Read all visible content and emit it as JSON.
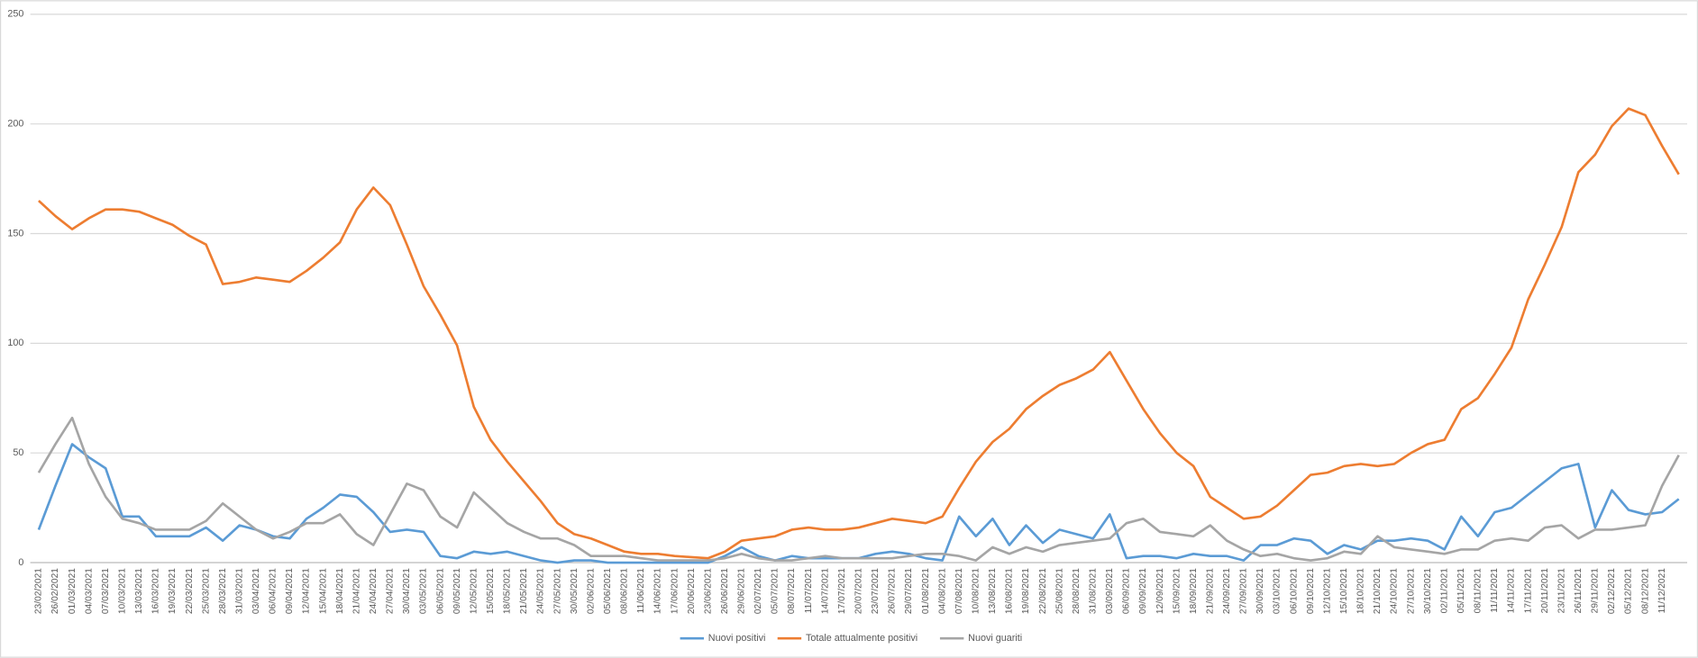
{
  "chart_data": {
    "type": "line",
    "categories": [
      "23/02/2021",
      "26/02/2021",
      "01/03/2021",
      "04/03/2021",
      "07/03/2021",
      "10/03/2021",
      "13/03/2021",
      "16/03/2021",
      "19/03/2021",
      "22/03/2021",
      "25/03/2021",
      "28/03/2021",
      "31/03/2021",
      "03/04/2021",
      "06/04/2021",
      "09/04/2021",
      "12/04/2021",
      "15/04/2021",
      "18/04/2021",
      "21/04/2021",
      "24/04/2021",
      "27/04/2021",
      "30/04/2021",
      "03/05/2021",
      "06/05/2021",
      "09/05/2021",
      "12/05/2021",
      "15/05/2021",
      "18/05/2021",
      "21/05/2021",
      "24/05/2021",
      "27/05/2021",
      "30/05/2021",
      "02/06/2021",
      "05/06/2021",
      "08/06/2021",
      "11/06/2021",
      "14/06/2021",
      "17/06/2021",
      "20/06/2021",
      "23/06/2021",
      "26/06/2021",
      "29/06/2021",
      "02/07/2021",
      "05/07/2021",
      "08/07/2021",
      "11/07/2021",
      "14/07/2021",
      "17/07/2021",
      "20/07/2021",
      "23/07/2021",
      "26/07/2021",
      "29/07/2021",
      "01/08/2021",
      "04/08/2021",
      "07/08/2021",
      "10/08/2021",
      "13/08/2021",
      "16/08/2021",
      "19/08/2021",
      "22/08/2021",
      "25/08/2021",
      "28/08/2021",
      "31/08/2021",
      "03/09/2021",
      "06/09/2021",
      "09/09/2021",
      "12/09/2021",
      "15/09/2021",
      "18/09/2021",
      "21/09/2021",
      "24/09/2021",
      "27/09/2021",
      "30/09/2021",
      "03/10/2021",
      "06/10/2021",
      "09/10/2021",
      "12/10/2021",
      "15/10/2021",
      "18/10/2021",
      "21/10/2021",
      "24/10/2021",
      "27/10/2021",
      "30/10/2021",
      "02/11/2021",
      "05/11/2021",
      "08/11/2021",
      "11/11/2021",
      "14/11/2021",
      "17/11/2021",
      "20/11/2021",
      "23/11/2021",
      "26/11/2021",
      "29/11/2021",
      "02/12/2021",
      "05/12/2021",
      "08/12/2021",
      "11/12/2021",
      null
    ],
    "series": [
      {
        "name": "Nuovi positivi",
        "color": "#5b9bd5",
        "values": [
          15,
          35,
          54,
          48,
          43,
          21,
          21,
          12,
          12,
          12,
          16,
          10,
          17,
          15,
          12,
          11,
          20,
          25,
          31,
          30,
          23,
          14,
          15,
          14,
          3,
          2,
          5,
          4,
          5,
          3,
          1,
          0,
          1,
          1,
          0,
          0,
          0,
          0,
          0,
          0,
          0,
          3,
          7,
          3,
          1,
          3,
          2,
          2,
          2,
          2,
          4,
          5,
          4,
          2,
          1,
          21,
          12,
          20,
          8,
          17,
          9,
          15,
          13,
          11,
          22,
          2,
          3,
          3,
          2,
          4,
          3,
          3,
          1,
          8,
          8,
          11,
          10,
          4,
          8,
          6,
          10,
          10,
          11,
          10,
          6,
          21,
          12,
          23,
          25,
          31,
          37,
          43,
          45,
          16,
          33,
          24,
          22,
          23,
          29
        ]
      },
      {
        "name": "Totale attualmente positivi",
        "color": "#ed7d31",
        "values": [
          165,
          158,
          152,
          157,
          161,
          161,
          160,
          157,
          154,
          149,
          145,
          127,
          128,
          130,
          129,
          128,
          133,
          139,
          146,
          161,
          171,
          163,
          145,
          126,
          113,
          99,
          71,
          56,
          46,
          37,
          28,
          18,
          13,
          11,
          8,
          5,
          4,
          4,
          3,
          2.5,
          2,
          5,
          10,
          11,
          12,
          15,
          16,
          15,
          15,
          16,
          18,
          20,
          19,
          18,
          21,
          34,
          46,
          55,
          61,
          70,
          76,
          81,
          84,
          88,
          96,
          83,
          70,
          59,
          50,
          44,
          30,
          25,
          20,
          21,
          26,
          33,
          40,
          41,
          44,
          45,
          44,
          45,
          50,
          54,
          56,
          70,
          75,
          86,
          98,
          120,
          136,
          153,
          178,
          186,
          199,
          207,
          204,
          190,
          177
        ]
      },
      {
        "name": "Nuovi guariti",
        "color": "#a5a5a5",
        "values": [
          41,
          54,
          66,
          45,
          30,
          20,
          18,
          15,
          15,
          15,
          19,
          27,
          21,
          15,
          11,
          14,
          18,
          18,
          22,
          13,
          8,
          22,
          36,
          33,
          21,
          16,
          32,
          25,
          18,
          14,
          11,
          11,
          8,
          3,
          3,
          3,
          2,
          1,
          1,
          1,
          1,
          2,
          4,
          2,
          1,
          1,
          2,
          3,
          2,
          2,
          2,
          2,
          3,
          4,
          4,
          3,
          1,
          7,
          4,
          7,
          5,
          8,
          9,
          10,
          11,
          18,
          20,
          14,
          13,
          12,
          17,
          10,
          6,
          3,
          4,
          2,
          1,
          2,
          5,
          4,
          12,
          7,
          6,
          5,
          4,
          6,
          6,
          10,
          11,
          10,
          16,
          17,
          11,
          15,
          15,
          16,
          17,
          35,
          49
        ]
      }
    ],
    "ylim": [
      0,
      250
    ],
    "yticks": [
      0,
      50,
      100,
      150,
      200,
      250
    ],
    "grid": true,
    "legend": "bottom"
  }
}
